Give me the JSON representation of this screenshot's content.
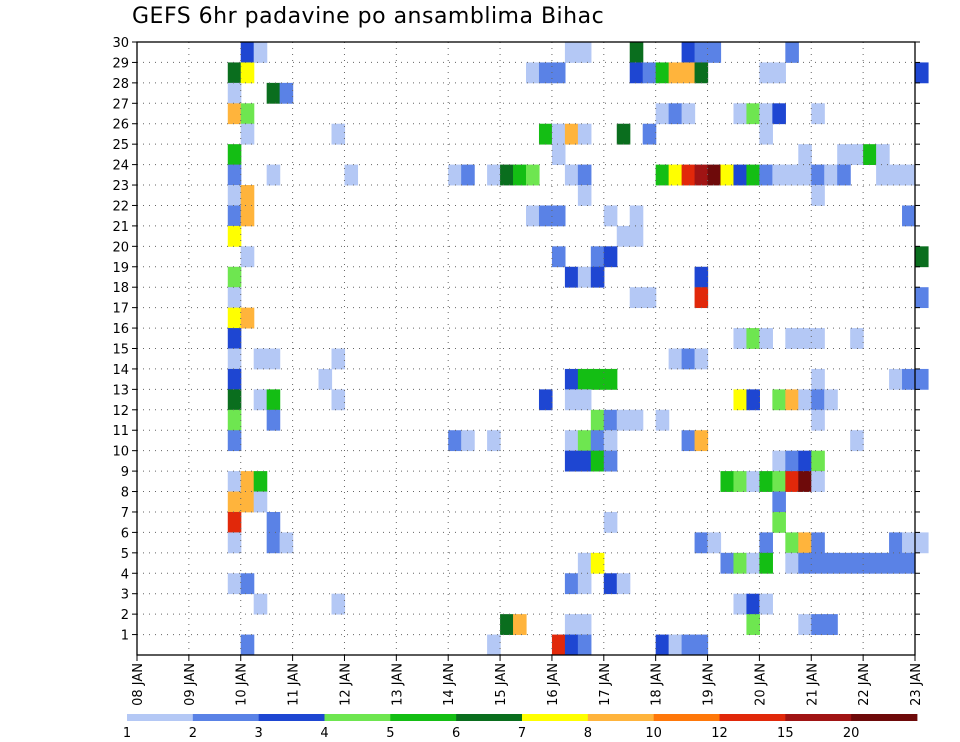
{
  "chart_data": {
    "type": "heatmap",
    "title": "GEFS 6hr padavine po ansamblima Bihac",
    "xlabel": "",
    "ylabel": "",
    "x_tick_labels": [
      "08 JAN",
      "09 JAN",
      "10 JAN",
      "11 JAN",
      "12 JAN",
      "13 JAN",
      "14 JAN",
      "15 JAN",
      "16 JAN",
      "17 JAN",
      "18 JAN",
      "19 JAN",
      "20 JAN",
      "21 JAN",
      "22 JAN",
      "23 JAN"
    ],
    "y_tick_labels": [
      "1",
      "2",
      "3",
      "4",
      "5",
      "6",
      "7",
      "8",
      "9",
      "10",
      "11",
      "12",
      "13",
      "14",
      "15",
      "16",
      "17",
      "18",
      "19",
      "20",
      "21",
      "22",
      "23",
      "24",
      "25",
      "26",
      "27",
      "28",
      "29",
      "30"
    ],
    "ylim": [
      0,
      30
    ],
    "grid": true,
    "time_step_hours": 6,
    "colorbar": {
      "tick_labels": [
        "1",
        "2",
        "3",
        "4",
        "5",
        "6",
        "7",
        "8",
        "10",
        "12",
        "15",
        "20"
      ],
      "colors": [
        "#b4c8f5",
        "#5a82e6",
        "#1e46d2",
        "#6ee650",
        "#14be14",
        "#0a6e1e",
        "#ffff00",
        "#ffb43c",
        "#ff780a",
        "#e1280a",
        "#a01414",
        "#6e0a0a"
      ]
    },
    "member_rows": [
      {
        "row": 30,
        "cells": [
          [
            "10 JAN 00",
            3
          ],
          [
            "10 JAN 06",
            1
          ],
          [
            "16 JAN 06",
            1
          ],
          [
            "16 JAN 12",
            1
          ],
          [
            "17 JAN 12",
            6
          ],
          [
            "18 JAN 12",
            3
          ],
          [
            "18 JAN 18",
            2
          ],
          [
            "19 JAN 00",
            2
          ],
          [
            "20 JAN 12",
            2
          ]
        ]
      },
      {
        "row": 29,
        "cells": [
          [
            "09 JAN 18",
            6
          ],
          [
            "10 JAN 00",
            7
          ],
          [
            "15 JAN 12",
            1
          ],
          [
            "15 JAN 18",
            2
          ],
          [
            "16 JAN 00",
            2
          ],
          [
            "17 JAN 12",
            3
          ],
          [
            "17 JAN 18",
            2
          ],
          [
            "18 JAN 00",
            5
          ],
          [
            "18 JAN 06",
            8
          ],
          [
            "18 JAN 12",
            8
          ],
          [
            "18 JAN 18",
            6
          ],
          [
            "20 JAN 00",
            1
          ],
          [
            "20 JAN 06",
            1
          ],
          [
            "23 JAN 00",
            3
          ]
        ]
      },
      {
        "row": 28,
        "cells": [
          [
            "09 JAN 18",
            1
          ],
          [
            "10 JAN 12",
            6
          ],
          [
            "10 JAN 18",
            2
          ]
        ]
      },
      {
        "row": 27,
        "cells": [
          [
            "09 JAN 18",
            8
          ],
          [
            "10 JAN 00",
            4
          ],
          [
            "18 JAN 00",
            1
          ],
          [
            "18 JAN 06",
            2
          ],
          [
            "18 JAN 12",
            1
          ],
          [
            "19 JAN 12",
            1
          ],
          [
            "19 JAN 18",
            4
          ],
          [
            "20 JAN 00",
            1
          ],
          [
            "20 JAN 06",
            3
          ],
          [
            "21 JAN 00",
            1
          ]
        ]
      },
      {
        "row": 26,
        "cells": [
          [
            "10 JAN 00",
            1
          ],
          [
            "11 JAN 18",
            1
          ],
          [
            "15 JAN 18",
            5
          ],
          [
            "16 JAN 00",
            1
          ],
          [
            "16 JAN 06",
            8
          ],
          [
            "16 JAN 12",
            1
          ],
          [
            "17 JAN 06",
            6
          ],
          [
            "17 JAN 18",
            2
          ],
          [
            "20 JAN 00",
            1
          ]
        ]
      },
      {
        "row": 25,
        "cells": [
          [
            "09 JAN 18",
            5
          ],
          [
            "16 JAN 00",
            1
          ],
          [
            "20 JAN 18",
            1
          ],
          [
            "21 JAN 12",
            1
          ],
          [
            "21 JAN 18",
            1
          ],
          [
            "22 JAN 00",
            5
          ],
          [
            "22 JAN 06",
            1
          ]
        ]
      },
      {
        "row": 24,
        "cells": [
          [
            "09 JAN 18",
            2
          ],
          [
            "10 JAN 12",
            1
          ],
          [
            "12 JAN 00",
            1
          ],
          [
            "14 JAN 00",
            1
          ],
          [
            "14 JAN 06",
            2
          ],
          [
            "14 JAN 18",
            1
          ],
          [
            "15 JAN 00",
            6
          ],
          [
            "15 JAN 06",
            5
          ],
          [
            "15 JAN 12",
            4
          ],
          [
            "16 JAN 06",
            1
          ],
          [
            "16 JAN 12",
            2
          ],
          [
            "18 JAN 00",
            5
          ],
          [
            "18 JAN 06",
            7
          ],
          [
            "18 JAN 12",
            12
          ],
          [
            "18 JAN 18",
            15
          ],
          [
            "19 JAN 00",
            20
          ],
          [
            "19 JAN 06",
            7
          ],
          [
            "19 JAN 12",
            3
          ],
          [
            "19 JAN 18",
            5
          ],
          [
            "20 JAN 00",
            2
          ],
          [
            "20 JAN 06",
            1
          ],
          [
            "20 JAN 12",
            1
          ],
          [
            "20 JAN 18",
            1
          ],
          [
            "21 JAN 00",
            2
          ],
          [
            "21 JAN 06",
            1
          ],
          [
            "21 JAN 12",
            2
          ],
          [
            "22 JAN 06",
            1
          ],
          [
            "22 JAN 12",
            1
          ],
          [
            "22 JAN 18",
            1
          ]
        ]
      },
      {
        "row": 23,
        "cells": [
          [
            "09 JAN 18",
            1
          ],
          [
            "10 JAN 00",
            8
          ],
          [
            "16 JAN 12",
            1
          ],
          [
            "21 JAN 00",
            1
          ]
        ]
      },
      {
        "row": 22,
        "cells": [
          [
            "09 JAN 18",
            2
          ],
          [
            "10 JAN 00",
            8
          ],
          [
            "15 JAN 12",
            1
          ],
          [
            "15 JAN 18",
            2
          ],
          [
            "16 JAN 00",
            2
          ],
          [
            "17 JAN 00",
            1
          ],
          [
            "17 JAN 12",
            1
          ],
          [
            "22 JAN 18",
            2
          ]
        ]
      },
      {
        "row": 21,
        "cells": [
          [
            "09 JAN 18",
            7
          ],
          [
            "17 JAN 06",
            1
          ],
          [
            "17 JAN 12",
            1
          ]
        ]
      },
      {
        "row": 20,
        "cells": [
          [
            "10 JAN 00",
            1
          ],
          [
            "16 JAN 00",
            2
          ],
          [
            "16 JAN 18",
            2
          ],
          [
            "17 JAN 00",
            3
          ],
          [
            "23 JAN 00",
            6
          ]
        ]
      },
      {
        "row": 19,
        "cells": [
          [
            "09 JAN 18",
            4
          ],
          [
            "16 JAN 06",
            3
          ],
          [
            "16 JAN 12",
            1
          ],
          [
            "16 JAN 18",
            3
          ],
          [
            "18 JAN 18",
            3
          ]
        ]
      },
      {
        "row": 18,
        "cells": [
          [
            "09 JAN 18",
            1
          ],
          [
            "17 JAN 12",
            1
          ],
          [
            "17 JAN 18",
            1
          ],
          [
            "18 JAN 18",
            12
          ],
          [
            "23 JAN 00",
            2
          ]
        ]
      },
      {
        "row": 17,
        "cells": [
          [
            "09 JAN 18",
            7
          ],
          [
            "10 JAN 00",
            8
          ]
        ]
      },
      {
        "row": 16,
        "cells": [
          [
            "09 JAN 18",
            3
          ],
          [
            "19 JAN 12",
            1
          ],
          [
            "19 JAN 18",
            4
          ],
          [
            "20 JAN 00",
            1
          ],
          [
            "20 JAN 12",
            1
          ],
          [
            "20 JAN 18",
            1
          ],
          [
            "21 JAN 00",
            1
          ],
          [
            "21 JAN 18",
            1
          ]
        ]
      },
      {
        "row": 15,
        "cells": [
          [
            "09 JAN 18",
            1
          ],
          [
            "10 JAN 06",
            1
          ],
          [
            "10 JAN 12",
            1
          ],
          [
            "11 JAN 18",
            1
          ],
          [
            "18 JAN 06",
            1
          ],
          [
            "18 JAN 12",
            2
          ],
          [
            "18 JAN 18",
            1
          ]
        ]
      },
      {
        "row": 14,
        "cells": [
          [
            "09 JAN 18",
            3
          ],
          [
            "11 JAN 12",
            1
          ],
          [
            "16 JAN 06",
            3
          ],
          [
            "16 JAN 12",
            5
          ],
          [
            "16 JAN 18",
            5
          ],
          [
            "17 JAN 00",
            5
          ],
          [
            "21 JAN 00",
            1
          ],
          [
            "22 JAN 12",
            1
          ],
          [
            "22 JAN 18",
            2
          ],
          [
            "23 JAN 00",
            2
          ]
        ]
      },
      {
        "row": 13,
        "cells": [
          [
            "09 JAN 18",
            6
          ],
          [
            "10 JAN 06",
            1
          ],
          [
            "10 JAN 12",
            5
          ],
          [
            "11 JAN 18",
            1
          ],
          [
            "15 JAN 18",
            3
          ],
          [
            "16 JAN 06",
            1
          ],
          [
            "16 JAN 12",
            1
          ],
          [
            "19 JAN 12",
            7
          ],
          [
            "19 JAN 18",
            3
          ],
          [
            "20 JAN 06",
            4
          ],
          [
            "20 JAN 12",
            8
          ],
          [
            "20 JAN 18",
            1
          ],
          [
            "21 JAN 00",
            2
          ],
          [
            "21 JAN 06",
            1
          ]
        ]
      },
      {
        "row": 12,
        "cells": [
          [
            "09 JAN 18",
            4
          ],
          [
            "10 JAN 12",
            2
          ],
          [
            "16 JAN 18",
            4
          ],
          [
            "17 JAN 00",
            2
          ],
          [
            "17 JAN 06",
            1
          ],
          [
            "17 JAN 12",
            1
          ],
          [
            "18 JAN 00",
            1
          ],
          [
            "21 JAN 00",
            1
          ]
        ]
      },
      {
        "row": 11,
        "cells": [
          [
            "09 JAN 18",
            2
          ],
          [
            "14 JAN 00",
            2
          ],
          [
            "14 JAN 06",
            1
          ],
          [
            "14 JAN 18",
            1
          ],
          [
            "16 JAN 06",
            1
          ],
          [
            "16 JAN 12",
            4
          ],
          [
            "16 JAN 18",
            2
          ],
          [
            "17 JAN 00",
            1
          ],
          [
            "18 JAN 12",
            2
          ],
          [
            "18 JAN 18",
            8
          ],
          [
            "21 JAN 18",
            1
          ]
        ]
      },
      {
        "row": 10,
        "cells": [
          [
            "16 JAN 06",
            3
          ],
          [
            "16 JAN 12",
            3
          ],
          [
            "16 JAN 18",
            5
          ],
          [
            "17 JAN 00",
            2
          ],
          [
            "20 JAN 06",
            1
          ],
          [
            "20 JAN 12",
            2
          ],
          [
            "20 JAN 18",
            3
          ],
          [
            "21 JAN 00",
            4
          ]
        ]
      },
      {
        "row": 9,
        "cells": [
          [
            "09 JAN 18",
            1
          ],
          [
            "10 JAN 00",
            8
          ],
          [
            "10 JAN 06",
            5
          ],
          [
            "19 JAN 06",
            5
          ],
          [
            "19 JAN 12",
            4
          ],
          [
            "19 JAN 18",
            1
          ],
          [
            "20 JAN 00",
            5
          ],
          [
            "20 JAN 06",
            4
          ],
          [
            "20 JAN 12",
            12
          ],
          [
            "20 JAN 18",
            20
          ],
          [
            "21 JAN 00",
            1
          ]
        ]
      },
      {
        "row": 8,
        "cells": [
          [
            "09 JAN 18",
            8
          ],
          [
            "10 JAN 00",
            8
          ],
          [
            "10 JAN 06",
            1
          ],
          [
            "20 JAN 06",
            2
          ]
        ]
      },
      {
        "row": 7,
        "cells": [
          [
            "09 JAN 18",
            12
          ],
          [
            "10 JAN 12",
            2
          ],
          [
            "17 JAN 00",
            1
          ],
          [
            "20 JAN 06",
            4
          ]
        ]
      },
      {
        "row": 6,
        "cells": [
          [
            "09 JAN 18",
            1
          ],
          [
            "10 JAN 12",
            2
          ],
          [
            "10 JAN 18",
            1
          ],
          [
            "18 JAN 18",
            2
          ],
          [
            "19 JAN 00",
            1
          ],
          [
            "20 JAN 00",
            2
          ],
          [
            "20 JAN 12",
            4
          ],
          [
            "20 JAN 18",
            8
          ],
          [
            "21 JAN 00",
            2
          ],
          [
            "22 JAN 12",
            2
          ],
          [
            "22 JAN 18",
            1
          ],
          [
            "23 JAN 00",
            1
          ]
        ]
      },
      {
        "row": 5,
        "cells": [
          [
            "16 JAN 12",
            1
          ],
          [
            "16 JAN 18",
            7
          ],
          [
            "19 JAN 06",
            2
          ],
          [
            "19 JAN 12",
            4
          ],
          [
            "19 JAN 18",
            1
          ],
          [
            "20 JAN 00",
            5
          ],
          [
            "20 JAN 12",
            1
          ],
          [
            "20 JAN 18",
            2
          ],
          [
            "21 JAN 00",
            2
          ],
          [
            "21 JAN 06",
            2
          ],
          [
            "21 JAN 12",
            2
          ],
          [
            "21 JAN 18",
            2
          ],
          [
            "22 JAN 00",
            2
          ],
          [
            "22 JAN 06",
            2
          ],
          [
            "22 JAN 12",
            2
          ],
          [
            "22 JAN 18",
            2
          ]
        ]
      },
      {
        "row": 4,
        "cells": [
          [
            "09 JAN 18",
            1
          ],
          [
            "10 JAN 00",
            2
          ],
          [
            "16 JAN 06",
            2
          ],
          [
            "16 JAN 12",
            1
          ],
          [
            "17 JAN 00",
            3
          ],
          [
            "17 JAN 06",
            1
          ]
        ]
      },
      {
        "row": 3,
        "cells": [
          [
            "10 JAN 06",
            1
          ],
          [
            "11 JAN 18",
            1
          ],
          [
            "19 JAN 12",
            1
          ],
          [
            "19 JAN 18",
            3
          ],
          [
            "20 JAN 00",
            1
          ]
        ]
      },
      {
        "row": 2,
        "cells": [
          [
            "15 JAN 00",
            6
          ],
          [
            "15 JAN 06",
            8
          ],
          [
            "16 JAN 06",
            1
          ],
          [
            "16 JAN 12",
            1
          ],
          [
            "19 JAN 18",
            4
          ],
          [
            "20 JAN 18",
            1
          ],
          [
            "21 JAN 00",
            2
          ],
          [
            "21 JAN 06",
            2
          ]
        ]
      },
      {
        "row": 1,
        "cells": [
          [
            "10 JAN 00",
            2
          ],
          [
            "14 JAN 18",
            1
          ],
          [
            "16 JAN 00",
            12
          ],
          [
            "16 JAN 06",
            3
          ],
          [
            "16 JAN 12",
            2
          ],
          [
            "18 JAN 00",
            3
          ],
          [
            "18 JAN 06",
            1
          ],
          [
            "18 JAN 12",
            2
          ],
          [
            "18 JAN 18",
            2
          ]
        ]
      }
    ]
  }
}
